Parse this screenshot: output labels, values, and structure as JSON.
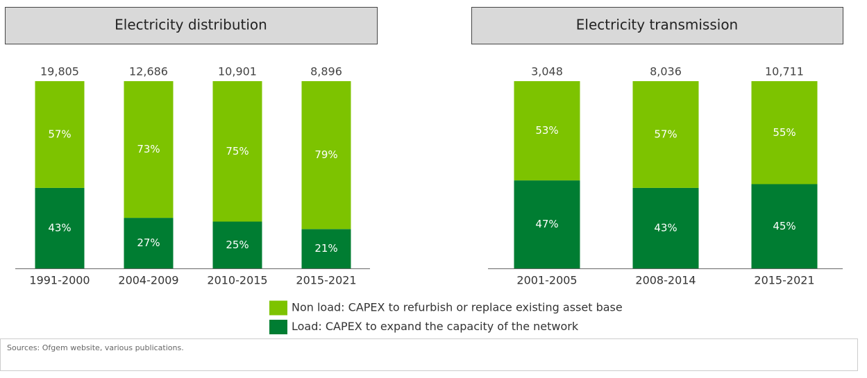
{
  "chart_data": [
    {
      "type": "bar",
      "stacked": true,
      "title": "Electricity distribution",
      "categories": [
        "1991-2000",
        "2004-2009",
        "2010-2015",
        "2015-2021"
      ],
      "ylim": [
        0,
        100
      ],
      "series": [
        {
          "name": "Load: CAPEX to expand the capacity of the network",
          "color": "#007d32",
          "values": [
            43,
            27,
            25,
            21
          ],
          "value_labels": [
            "43%",
            "27%",
            "25%",
            "21%"
          ]
        },
        {
          "name": "Non load: CAPEX to refurbish or replace existing asset base",
          "color": "#7dc300",
          "values": [
            57,
            73,
            75,
            79
          ],
          "value_labels": [
            "57%",
            "73%",
            "75%",
            "79%"
          ]
        }
      ],
      "totals": {
        "values": [
          19805,
          12686,
          10901,
          8896
        ],
        "value_labels": [
          "19,805",
          "12,686",
          "10,901",
          "8,896"
        ]
      }
    },
    {
      "type": "bar",
      "stacked": true,
      "title": "Electricity transmission",
      "categories": [
        "2001-2005",
        "2008-2014",
        "2015-2021"
      ],
      "ylim": [
        0,
        100
      ],
      "series": [
        {
          "color": "#007d32",
          "values": [
            47,
            43,
            45
          ],
          "value_labels": [
            "47%",
            "43%",
            "45%"
          ]
        },
        {
          "color": "#7dc300",
          "values": [
            53,
            57,
            55
          ],
          "value_labels": [
            "53%",
            "57%",
            "55%"
          ]
        }
      ],
      "totals": {
        "values": [
          3048,
          8036,
          10711
        ],
        "value_labels": [
          "3,048",
          "8,036",
          "10,711"
        ]
      }
    }
  ],
  "source": "Sources: Ofgem website, various publications."
}
